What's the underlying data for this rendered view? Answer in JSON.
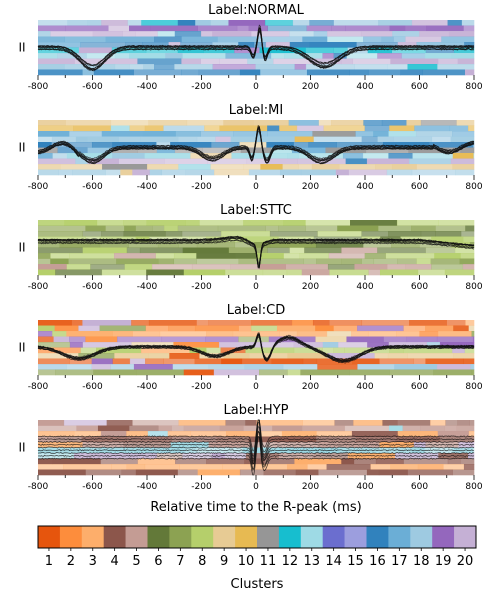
{
  "chart_data": {
    "type": "heatmap",
    "xlabel": "Relative time to the R-peak (ms)",
    "colorbar_label": "Clusters",
    "xlim": [
      -800,
      800
    ],
    "xticks": [
      "-800",
      "-600",
      "-400",
      "-200",
      "0",
      "200",
      "400",
      "600",
      "800"
    ],
    "colorbar": {
      "ticks": [
        "1",
        "2",
        "3",
        "4",
        "5",
        "6",
        "7",
        "8",
        "9",
        "10",
        "11",
        "12",
        "13",
        "14",
        "15",
        "16",
        "17",
        "18",
        "19",
        "20"
      ],
      "colors": [
        "#e6550d",
        "#fd8d3c",
        "#fdae6b",
        "#8c564b",
        "#c49c94",
        "#637939",
        "#8ca252",
        "#b5cf6b",
        "#e7cb94",
        "#e7ba52",
        "#969696",
        "#17becf",
        "#9edae5",
        "#6b6ecf",
        "#9c9ede",
        "#3182bd",
        "#6baed6",
        "#9ecae1",
        "#9467bd",
        "#c5b0d5"
      ]
    },
    "panels": [
      {
        "title": "Label:NORMAL",
        "lead": "II",
        "clusters": [
          18,
          19,
          20,
          17,
          16,
          12,
          13,
          20,
          18,
          16
        ],
        "shape": "normal"
      },
      {
        "title": "Label:MI",
        "lead": "II",
        "clusters": [
          9,
          10,
          17,
          18,
          16,
          11,
          13,
          20,
          9,
          18
        ],
        "shape": "mi"
      },
      {
        "title": "Label:STTC",
        "lead": "II",
        "clusters": [
          8,
          7,
          6,
          8,
          7,
          6,
          8,
          7,
          5,
          8
        ],
        "shape": "sttc"
      },
      {
        "title": "Label:CD",
        "lead": "II",
        "clusters": [
          1,
          2,
          3,
          19,
          20,
          8,
          9,
          1,
          18,
          7
        ],
        "shape": "cd"
      },
      {
        "title": "Label:HYP",
        "lead": "II",
        "clusters": [
          4,
          5,
          3,
          4,
          5,
          13,
          20,
          4,
          3,
          4
        ],
        "shape": "hyp"
      }
    ]
  }
}
